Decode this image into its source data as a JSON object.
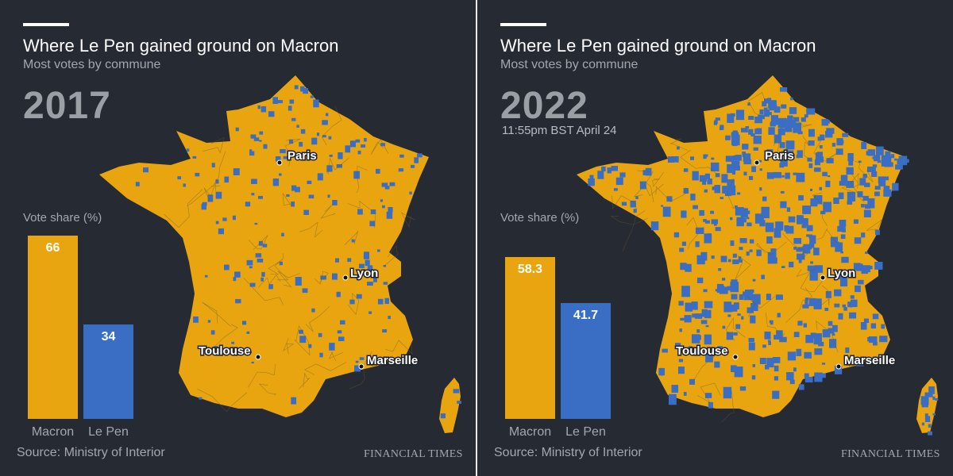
{
  "colors": {
    "macron": "#e8a50f",
    "lepen": "#3a6ec5",
    "background": "#262a33",
    "muted": "#a3a7ad"
  },
  "chart_data": [
    {
      "type": "bar",
      "title": "Where Le Pen gained ground on Macron",
      "subtitle": "Most votes by commune",
      "year": "2017",
      "timestamp": "",
      "ylabel": "Vote share (%)",
      "categories": [
        "Macron",
        "Le Pen"
      ],
      "values": [
        66,
        34
      ],
      "value_labels": [
        "66",
        "34"
      ],
      "ylim": [
        0,
        66
      ],
      "cities": [
        "Paris",
        "Lyon",
        "Toulouse",
        "Marseille"
      ],
      "source": "Source: Ministry of Interior",
      "publisher": "FINANCIAL TIMES"
    },
    {
      "type": "bar",
      "title": "Where Le Pen gained ground on Macron",
      "subtitle": "Most votes by commune",
      "year": "2022",
      "timestamp": "11:55pm BST April 24",
      "ylabel": "Vote share (%)",
      "categories": [
        "Macron",
        "Le Pen"
      ],
      "values": [
        58.3,
        41.7
      ],
      "value_labels": [
        "58.3",
        "41.7"
      ],
      "ylim": [
        0,
        66
      ],
      "cities": [
        "Paris",
        "Lyon",
        "Toulouse",
        "Marseille"
      ],
      "source": "Source: Ministry of Interior",
      "publisher": "FINANCIAL TIMES"
    }
  ]
}
